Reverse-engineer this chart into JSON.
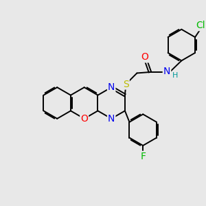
{
  "background_color": "#e8e8e8",
  "bond_color": "#000000",
  "atom_colors": {
    "O": "#ff0000",
    "N": "#0000ee",
    "S": "#bbbb00",
    "F": "#00bb00",
    "Cl": "#00bb00",
    "H": "#009999",
    "C": "#000000"
  },
  "font_size_atoms": 10,
  "font_size_small": 8,
  "line_width": 1.4,
  "figsize": [
    3.0,
    3.0
  ],
  "dpi": 100,
  "xlim": [
    0,
    10
  ],
  "ylim": [
    0,
    10
  ]
}
